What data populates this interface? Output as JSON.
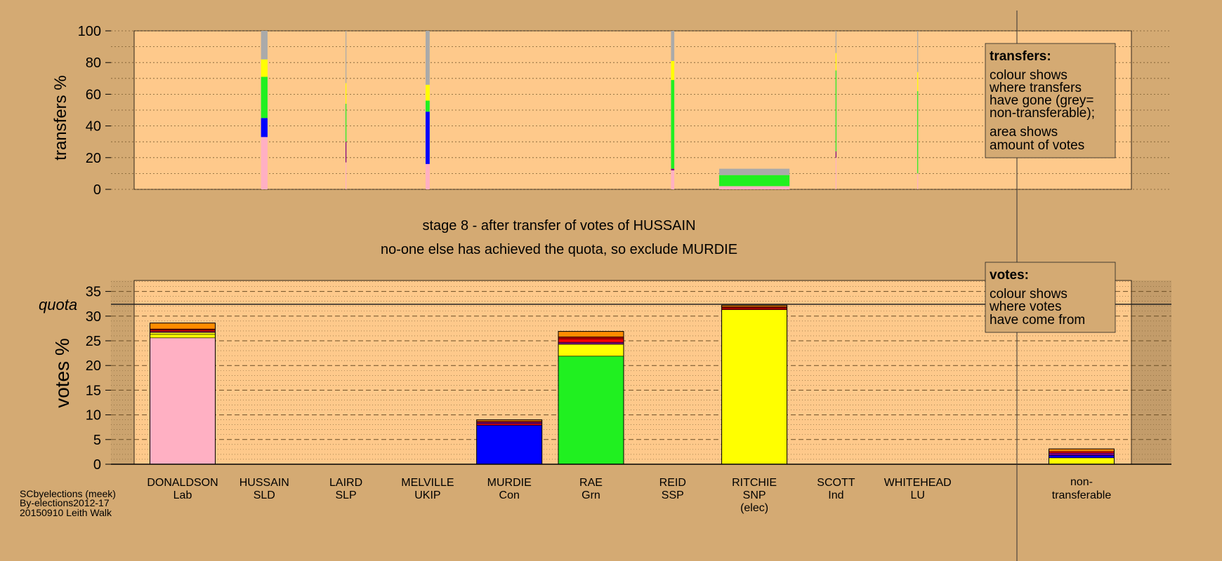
{
  "colors": {
    "page_bg": "#d4aa73",
    "plot_bg": "#fec98b",
    "Lab": "#ffb0c3",
    "SLD": "#ffff10",
    "SLP": "#b00000",
    "UKIP": "#800080",
    "Con": "#0000ff",
    "Grn": "#20f020",
    "SSP": "#ff0000",
    "SNP": "#ffff00",
    "Ind": "#606060",
    "LU": "#ff8c00",
    "nontransferable": "#aaaaaa"
  },
  "header": {
    "stage_text": "stage 8 - after transfer of votes of HUSSAIN",
    "action_text": "no-one else has achieved the quota, so exclude MURDIE"
  },
  "footer": {
    "line1": "SCbyelections (meek)",
    "line2": "By-elections2012-17",
    "line3": "20150910 Leith Walk"
  },
  "legends": {
    "transfers_title": "transfers:",
    "transfers_lines": [
      "colour shows",
      "where transfers",
      "have gone (grey=",
      "non-transferable);",
      "area shows",
      "amount of votes"
    ],
    "votes_title": "votes:",
    "votes_lines": [
      "colour shows",
      "where votes",
      "have come from"
    ]
  },
  "candidates": [
    {
      "name": "DONALDSON",
      "party": "Lab",
      "note": ""
    },
    {
      "name": "HUSSAIN",
      "party": "SLD",
      "note": ""
    },
    {
      "name": "LAIRD",
      "party": "SLP",
      "note": ""
    },
    {
      "name": "MELVILLE",
      "party": "UKIP",
      "note": ""
    },
    {
      "name": "MURDIE",
      "party": "Con",
      "note": ""
    },
    {
      "name": "RAE",
      "party": "Grn",
      "note": ""
    },
    {
      "name": "REID",
      "party": "SSP",
      "note": ""
    },
    {
      "name": "RITCHIE",
      "party": "SNP",
      "note": "(elec)"
    },
    {
      "name": "SCOTT",
      "party": "Ind",
      "note": ""
    },
    {
      "name": "WHITEHEAD",
      "party": "LU",
      "note": ""
    }
  ],
  "nontransferable_label": [
    "non-",
    "transferable"
  ],
  "chart_data": [
    {
      "type": "bar",
      "title": "transfers",
      "ylabel": "transfers %",
      "ylim": [
        0,
        100
      ],
      "yticks": [
        0,
        20,
        40,
        60,
        80,
        100
      ],
      "grid": true,
      "note": "stacked bars; colour = destination of transfers, bar width = amount of votes",
      "bars": [
        {
          "candidate": "HUSSAIN",
          "width_votes_pct": 0.4,
          "segments": [
            {
              "to": "Lab",
              "value": 33
            },
            {
              "to": "Con",
              "value": 12
            },
            {
              "to": "Grn",
              "value": 26
            },
            {
              "to": "SNP",
              "value": 11
            },
            {
              "to": "nontransferable",
              "value": 18
            }
          ]
        },
        {
          "candidate": "LAIRD",
          "width_votes_pct": 0.05,
          "segments": [
            {
              "to": "Lab",
              "value": 17
            },
            {
              "to": "UKIP",
              "value": 13
            },
            {
              "to": "Grn",
              "value": 24
            },
            {
              "to": "SNP",
              "value": 13
            },
            {
              "to": "nontransferable",
              "value": 33
            }
          ]
        },
        {
          "candidate": "MELVILLE",
          "width_votes_pct": 0.25,
          "segments": [
            {
              "to": "Lab",
              "value": 16
            },
            {
              "to": "Con",
              "value": 33
            },
            {
              "to": "Grn",
              "value": 7
            },
            {
              "to": "SNP",
              "value": 10
            },
            {
              "to": "nontransferable",
              "value": 34
            }
          ]
        },
        {
          "candidate": "REID",
          "width_votes_pct": 0.2,
          "segments": [
            {
              "to": "Lab",
              "value": 12
            },
            {
              "to": "UKIP",
              "value": 1
            },
            {
              "to": "Grn",
              "value": 56
            },
            {
              "to": "SNP",
              "value": 12
            },
            {
              "to": "nontransferable",
              "value": 19
            }
          ]
        },
        {
          "candidate": "RITCHIE",
          "width_votes_pct": 4.3,
          "segments": [
            {
              "to": "Lab",
              "value": 2
            },
            {
              "to": "Grn",
              "value": 7
            },
            {
              "to": "nontransferable",
              "value": 4
            }
          ]
        },
        {
          "candidate": "SCOTT",
          "width_votes_pct": 0.05,
          "segments": [
            {
              "to": "Lab",
              "value": 20
            },
            {
              "to": "UKIP",
              "value": 4
            },
            {
              "to": "Grn",
              "value": 51
            },
            {
              "to": "SNP",
              "value": 11
            },
            {
              "to": "nontransferable",
              "value": 14
            }
          ]
        },
        {
          "candidate": "WHITEHEAD",
          "width_votes_pct": 0.05,
          "segments": [
            {
              "to": "Lab",
              "value": 10
            },
            {
              "to": "Grn",
              "value": 52
            },
            {
              "to": "SNP",
              "value": 12
            },
            {
              "to": "nontransferable",
              "value": 26
            }
          ]
        }
      ]
    },
    {
      "type": "bar",
      "title": "votes",
      "ylabel": "votes %",
      "ylim": [
        0,
        37
      ],
      "yticks": [
        0,
        5,
        10,
        15,
        20,
        25,
        30,
        35
      ],
      "quota": 32.4,
      "quota_label": "quota",
      "grid": true,
      "note": "stacked bars; colour = where votes have come from",
      "bars": [
        {
          "candidate": "DONALDSON",
          "segments": [
            {
              "from": "Lab",
              "value": 25.6
            },
            {
              "from": "SNP",
              "value": 0.7
            },
            {
              "from": "SLD",
              "value": 0.4
            },
            {
              "from": "UKIP",
              "value": 0.2
            },
            {
              "from": "SSP",
              "value": 0.3
            },
            {
              "from": "SLP",
              "value": 0.2
            },
            {
              "from": "LU",
              "value": 1.2
            }
          ]
        },
        {
          "candidate": "HUSSAIN",
          "segments": []
        },
        {
          "candidate": "LAIRD",
          "segments": []
        },
        {
          "candidate": "MELVILLE",
          "segments": []
        },
        {
          "candidate": "MURDIE",
          "segments": [
            {
              "from": "Con",
              "value": 7.9
            },
            {
              "from": "SSP",
              "value": 0.3
            },
            {
              "from": "UKIP",
              "value": 0.3
            },
            {
              "from": "SLP",
              "value": 0.2
            },
            {
              "from": "LU",
              "value": 0.3
            }
          ]
        },
        {
          "candidate": "RAE",
          "segments": [
            {
              "from": "Grn",
              "value": 21.9
            },
            {
              "from": "SNP",
              "value": 2.4
            },
            {
              "from": "UKIP",
              "value": 0.4
            },
            {
              "from": "SSP",
              "value": 0.7
            },
            {
              "from": "SLP",
              "value": 0.4
            },
            {
              "from": "LU",
              "value": 1.1
            }
          ]
        },
        {
          "candidate": "REID",
          "segments": []
        },
        {
          "candidate": "RITCHIE",
          "segments": [
            {
              "from": "SNP",
              "value": 31.3
            },
            {
              "from": "SLP",
              "value": 0.4
            },
            {
              "from": "SSP",
              "value": 0.2
            },
            {
              "from": "LU",
              "value": 0.3
            }
          ]
        },
        {
          "candidate": "SCOTT",
          "segments": []
        },
        {
          "candidate": "WHITEHEAD",
          "segments": []
        },
        {
          "candidate": "non-transferable",
          "segments": [
            {
              "from": "SNP",
              "value": 1.3
            },
            {
              "from": "Con",
              "value": 0.5
            },
            {
              "from": "UKIP",
              "value": 0.5
            },
            {
              "from": "SSP",
              "value": 0.3
            },
            {
              "from": "LU",
              "value": 0.5
            }
          ]
        }
      ]
    }
  ]
}
